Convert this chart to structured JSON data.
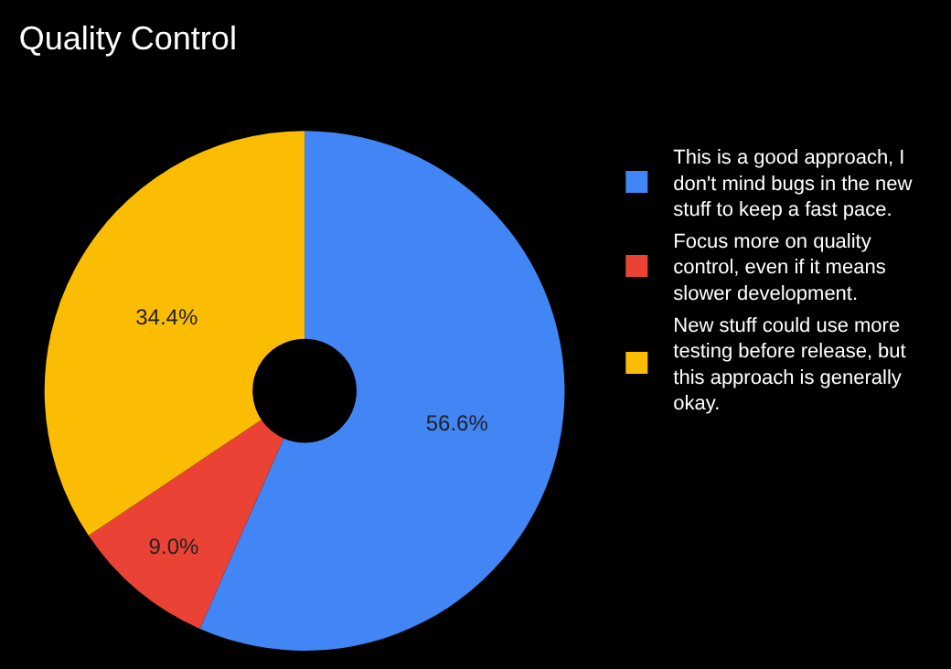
{
  "chart_data": {
    "type": "donut",
    "title": "Quality Control",
    "categories": [
      "This is a good approach, I don't mind bugs in the new stuff to keep a fast pace.",
      "Focus more on quality control, even if it means slower development.",
      "New stuff could use more testing before release, but this approach is generally okay."
    ],
    "values": [
      56.6,
      9.0,
      34.4
    ],
    "colors": [
      "#4285f4",
      "#ea4335",
      "#fbbc04"
    ],
    "value_labels": [
      "56.6%",
      "9.0%",
      "34.4%"
    ],
    "legend": "right"
  }
}
